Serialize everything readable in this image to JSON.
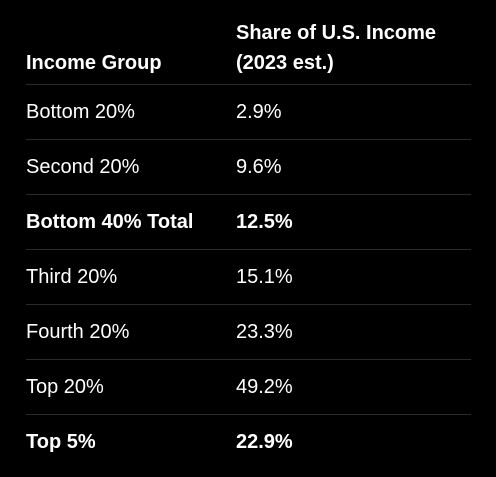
{
  "table": {
    "headers": {
      "group": "Income Group",
      "share_line1": "Share of U.S. Income",
      "share_line2": "(2023 est.)"
    },
    "rows": [
      {
        "group": "Bottom 20%",
        "share": "2.9%",
        "bold": false
      },
      {
        "group": "Second 20%",
        "share": "9.6%",
        "bold": false
      },
      {
        "group": "Bottom 40% Total",
        "share": "12.5%",
        "bold": true
      },
      {
        "group": "Third 20%",
        "share": "15.1%",
        "bold": false
      },
      {
        "group": "Fourth 20%",
        "share": "23.3%",
        "bold": false
      },
      {
        "group": "Top 20%",
        "share": "49.2%",
        "bold": false
      },
      {
        "group": "Top 5%",
        "share": "22.9%",
        "bold": true
      }
    ]
  },
  "colors": {
    "background": "#000000",
    "text": "#ffffff",
    "divider": "#2a2a2a"
  }
}
